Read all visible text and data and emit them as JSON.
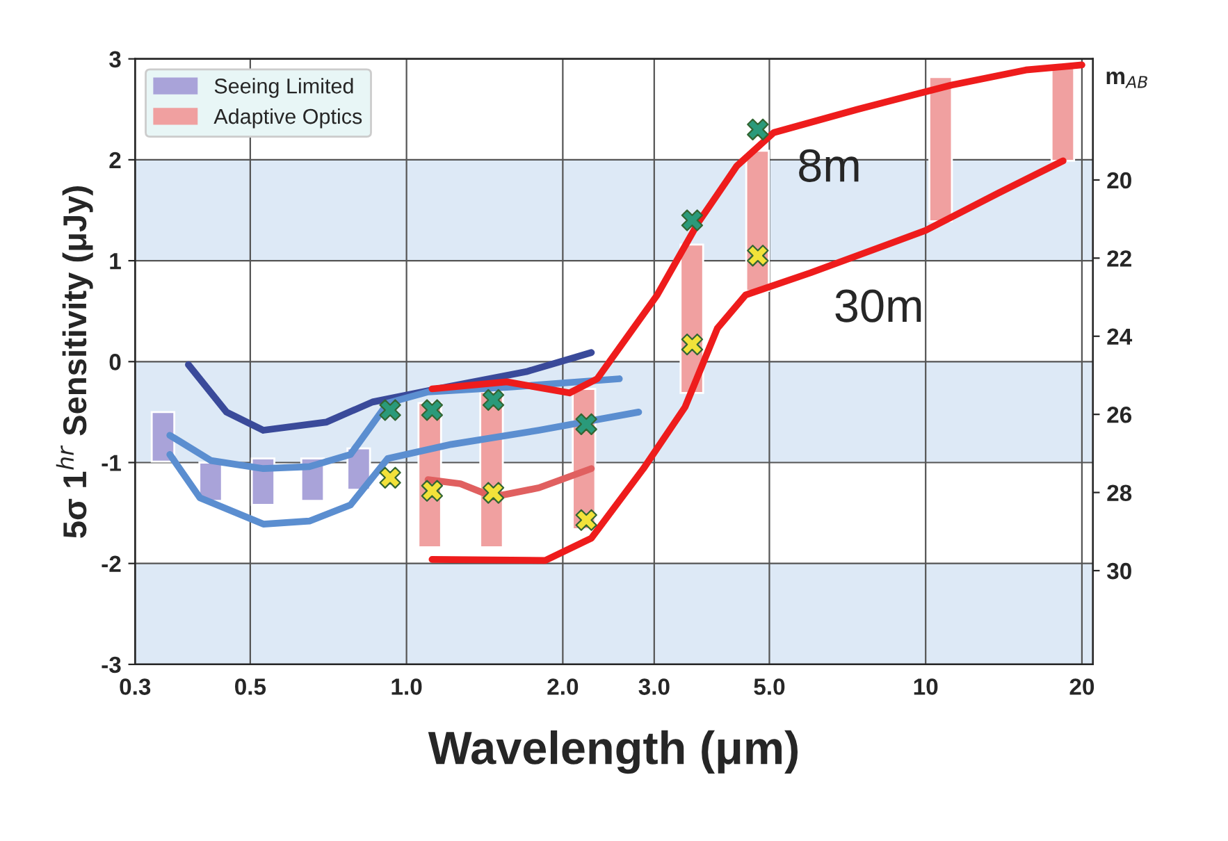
{
  "chart_data": {
    "type": "line",
    "xlabel": "Wavelength (μm)",
    "ylabel": "5σ 1$^{hr}$ Sensitivity (μJy)",
    "y2label": "m$_{AB}$",
    "log": "x",
    "xlim": [
      0.3,
      21
    ],
    "ylim": [
      -3,
      3
    ],
    "xticks": [
      {
        "value": 0.3,
        "label": "0.3"
      },
      {
        "value": 0.5,
        "label": "0.5"
      },
      {
        "value": 1,
        "label": "1.0"
      },
      {
        "value": 2,
        "label": "2.0"
      },
      {
        "value": 3,
        "label": "3.0"
      },
      {
        "value": 5,
        "label": "5.0"
      },
      10,
      20
    ],
    "yticks": [
      -3,
      -2,
      -1,
      0,
      1,
      2,
      3
    ],
    "y2lim": [
      32.4,
      16.9
    ],
    "y2ticks": [
      20,
      22,
      24,
      26,
      28,
      30
    ],
    "grid": true,
    "legend": "top left",
    "bands": [
      {
        "axis": "y",
        "from": 1,
        "to": 2,
        "color": "#dde9f6"
      },
      {
        "axis": "y",
        "from": -1,
        "to": 0,
        "color": "#dde9f6"
      },
      {
        "axis": "y",
        "from": -3,
        "to": -2,
        "color": "#dde9f6"
      }
    ],
    "series": [
      {
        "name": "Seeing Limited",
        "type": "bar",
        "color": "#a9a3d9",
        "x": [
          0.34,
          0.42,
          0.53,
          0.66,
          0.81
        ],
        "base": [
          -0.99,
          -1.38,
          -1.42,
          -1.38,
          -1.27
        ],
        "values": [
          0.49,
          0.38,
          0.46,
          0.42,
          0.41
        ]
      },
      {
        "name": "Adaptive Optics",
        "type": "bar",
        "color": "#f0a0a0",
        "x": [
          1.11,
          1.46,
          2.2,
          3.55,
          4.75,
          10.7,
          18.4
        ],
        "base": [
          -1.84,
          -1.84,
          -1.66,
          -0.31,
          0.7,
          1.39,
          1.99
        ],
        "values": [
          1.43,
          1.54,
          1.39,
          1.47,
          1.39,
          1.43,
          0.93
        ]
      },
      {
        "color": "#3a4a9a",
        "x": [
          0.38,
          0.45,
          0.53,
          0.7,
          0.86,
          1.2,
          1.7,
          2.27
        ],
        "values": [
          -0.03,
          -0.5,
          -0.68,
          -0.6,
          -0.4,
          -0.25,
          -0.1,
          0.09
        ]
      },
      {
        "color": "#5b8ed0",
        "x": [
          0.35,
          0.42,
          0.53,
          0.65,
          0.78,
          0.92,
          1.1,
          1.6,
          2.57
        ],
        "values": [
          -0.73,
          -0.98,
          -1.06,
          -1.04,
          -0.92,
          -0.41,
          -0.3,
          -0.25,
          -0.17
        ]
      },
      {
        "color": "#5b8ed0",
        "x": [
          0.35,
          0.4,
          0.53,
          0.65,
          0.78,
          0.92,
          1.22,
          1.8,
          2.8
        ],
        "values": [
          -0.92,
          -1.35,
          -1.61,
          -1.58,
          -1.42,
          -0.96,
          -0.82,
          -0.68,
          -0.5
        ]
      },
      {
        "color": "#e06060",
        "x": [
          1.1,
          1.27,
          1.47,
          1.8,
          2.27
        ],
        "values": [
          -1.17,
          -1.21,
          -1.34,
          -1.25,
          -1.06
        ]
      },
      {
        "name": "8m",
        "color": "#ee1c1c",
        "x": [
          1.12,
          1.56,
          2.06,
          2.33,
          3.04,
          3.66,
          4.33,
          5.1,
          7.4,
          11.2,
          15.6,
          20
        ],
        "values": [
          -0.27,
          -0.2,
          -0.31,
          -0.17,
          0.66,
          1.39,
          1.94,
          2.27,
          2.5,
          2.74,
          2.89,
          2.94
        ]
      },
      {
        "name": "30m",
        "color": "#ee1c1c",
        "x": [
          1.12,
          1.85,
          2.27,
          2.86,
          3.44,
          3.97,
          4.5,
          6.0,
          10,
          13.8,
          18.4
        ],
        "values": [
          -1.96,
          -1.97,
          -1.75,
          -1.06,
          -0.45,
          0.33,
          0.66,
          0.88,
          1.3,
          1.67,
          1.99
        ]
      },
      {
        "type": "scatter",
        "color": "#2a9a7a",
        "marker": "cross",
        "x": [
          0.93,
          1.12,
          1.47,
          2.22,
          3.55,
          4.75
        ],
        "values": [
          -0.48,
          -0.48,
          -0.38,
          -0.62,
          1.4,
          2.3
        ]
      },
      {
        "type": "scatter",
        "color": "#f2e23a",
        "marker": "cross",
        "x": [
          0.93,
          1.12,
          1.47,
          2.22,
          3.55,
          4.75
        ],
        "values": [
          -1.15,
          -1.28,
          -1.3,
          -1.57,
          0.17,
          1.05
        ]
      }
    ]
  }
}
